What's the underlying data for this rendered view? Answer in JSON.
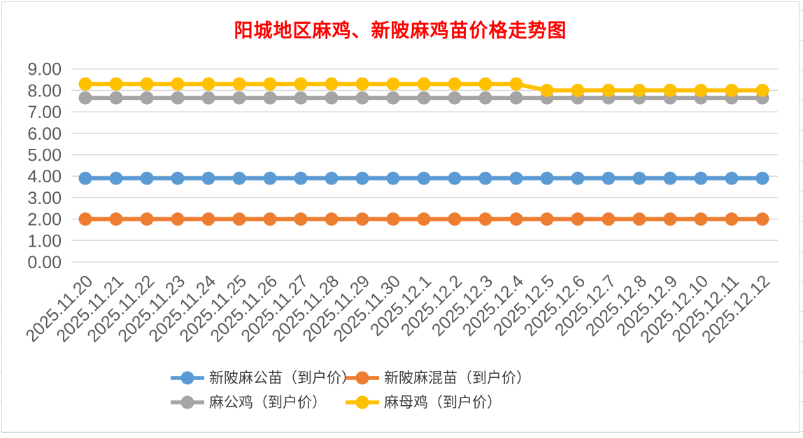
{
  "chart_data": {
    "type": "line",
    "title": "阳城地区麻鸡、新陂麻鸡苗价格走势图",
    "title_color": "#FF0000",
    "categories": [
      "2025.11.20",
      "2025.11.21",
      "2025.11.22",
      "2025.11.23",
      "2025.11.24",
      "2025.11.25",
      "2025.11.26",
      "2025.11.27",
      "2025.11.28",
      "2025.11.29",
      "2025.11.30",
      "2025.12.1",
      "2025.12.2",
      "2025.12.3",
      "2025.12.4",
      "2025.12.5",
      "2025.12.6",
      "2025.12.7",
      "2025.12.8",
      "2025.12.9",
      "2025.12.10",
      "2025.12.11",
      "2025.12.12"
    ],
    "series": [
      {
        "name": "新陂麻公苗（到户价）",
        "color": "#5B9BD5",
        "values": [
          3.9,
          3.9,
          3.9,
          3.9,
          3.9,
          3.9,
          3.9,
          3.9,
          3.9,
          3.9,
          3.9,
          3.9,
          3.9,
          3.9,
          3.9,
          3.9,
          3.9,
          3.9,
          3.9,
          3.9,
          3.9,
          3.9,
          3.9
        ]
      },
      {
        "name": "新陂麻混苗（到户价）",
        "color": "#ED7D31",
        "values": [
          2.0,
          2.0,
          2.0,
          2.0,
          2.0,
          2.0,
          2.0,
          2.0,
          2.0,
          2.0,
          2.0,
          2.0,
          2.0,
          2.0,
          2.0,
          2.0,
          2.0,
          2.0,
          2.0,
          2.0,
          2.0,
          2.0,
          2.0
        ]
      },
      {
        "name": "麻公鸡（到户价）",
        "color": "#A5A5A5",
        "values": [
          7.65,
          7.65,
          7.65,
          7.65,
          7.65,
          7.65,
          7.65,
          7.65,
          7.65,
          7.65,
          7.65,
          7.65,
          7.65,
          7.65,
          7.65,
          7.65,
          7.65,
          7.65,
          7.65,
          7.65,
          7.65,
          7.65,
          7.65
        ]
      },
      {
        "name": "麻母鸡（到户价）",
        "color": "#FFC000",
        "values": [
          8.3,
          8.3,
          8.3,
          8.3,
          8.3,
          8.3,
          8.3,
          8.3,
          8.3,
          8.3,
          8.3,
          8.3,
          8.3,
          8.3,
          8.3,
          8.0,
          8.0,
          8.0,
          8.0,
          8.0,
          8.0,
          8.0,
          8.0
        ]
      }
    ],
    "ylim": [
      0,
      9
    ],
    "ytick_step": 1,
    "y_tick_labels": [
      "0.00",
      "1.00",
      "2.00",
      "3.00",
      "4.00",
      "5.00",
      "6.00",
      "7.00",
      "8.00",
      "9.00"
    ],
    "grid": true,
    "legend_position": "bottom",
    "x_label_rotation_deg": 45,
    "axis_text_color": "#595959",
    "gridline_color": "#D9D9D9",
    "legend_text_color": "#404040"
  }
}
